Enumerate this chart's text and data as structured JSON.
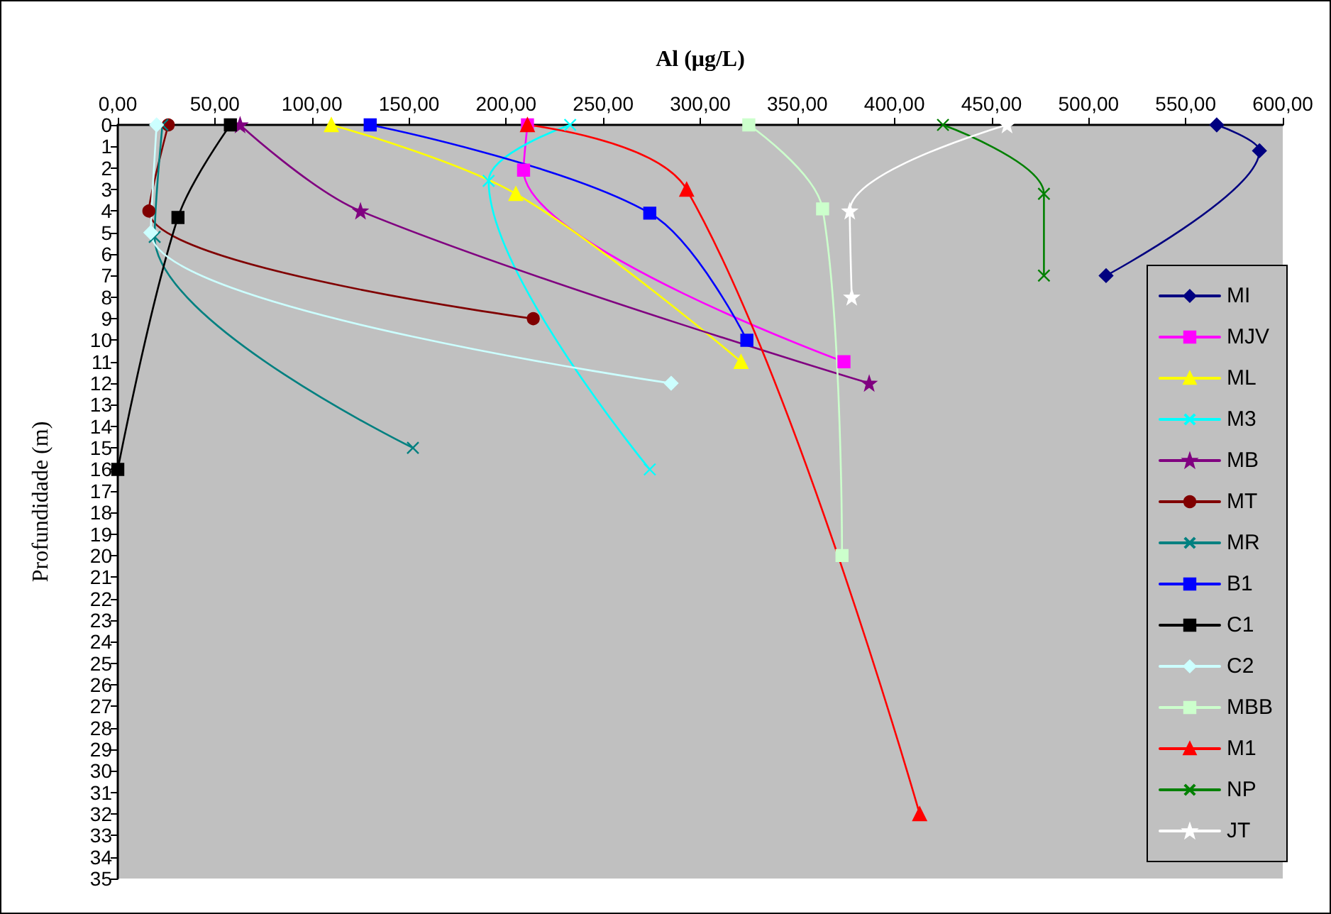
{
  "chart_data": {
    "type": "line",
    "xlabel": "Al (μg/L)",
    "ylabel": "Profundidade (m)",
    "xlim": [
      0,
      600
    ],
    "xticks": [
      {
        "value": 0,
        "label": "0,00"
      },
      {
        "value": 50,
        "label": "50,00"
      },
      {
        "value": 100,
        "label": "100,00"
      },
      {
        "value": 150,
        "label": "150,00"
      },
      {
        "value": 200,
        "label": "200,00"
      },
      {
        "value": 250,
        "label": "250,00"
      },
      {
        "value": 300,
        "label": "300,00"
      },
      {
        "value": 350,
        "label": "350,00"
      },
      {
        "value": 400,
        "label": "400,00"
      },
      {
        "value": 450,
        "label": "450,00"
      },
      {
        "value": 500,
        "label": "500,00"
      },
      {
        "value": 550,
        "label": "550,00"
      },
      {
        "value": 600,
        "label": "600,00"
      }
    ],
    "ylim": [
      35,
      0
    ],
    "yticks": [
      0,
      1,
      2,
      3,
      4,
      5,
      6,
      7,
      8,
      9,
      10,
      11,
      12,
      13,
      14,
      15,
      16,
      17,
      18,
      19,
      20,
      21,
      22,
      23,
      24,
      25,
      26,
      27,
      28,
      29,
      30,
      31,
      32,
      33,
      34,
      35
    ],
    "grid": false,
    "legend": "bottom right",
    "series": [
      {
        "name": "MI",
        "color": "#000080",
        "marker": "diamond",
        "x": [
          566,
          588,
          509
        ],
        "values": [
          0,
          1.2,
          7
        ]
      },
      {
        "name": "MJV",
        "color": "#ff00ff",
        "marker": "square",
        "x": [
          211,
          209,
          374
        ],
        "values": [
          0,
          2.1,
          11
        ]
      },
      {
        "name": "ML",
        "color": "#ffff00",
        "marker": "triangle",
        "x": [
          110,
          205,
          321
        ],
        "values": [
          0,
          3.2,
          11
        ]
      },
      {
        "name": "M3",
        "color": "#00ffff",
        "marker": "cross",
        "x": [
          233,
          191,
          274
        ],
        "values": [
          0,
          2.6,
          16
        ]
      },
      {
        "name": "MB",
        "color": "#800080",
        "marker": "star",
        "x": [
          63,
          125,
          387
        ],
        "values": [
          0,
          4,
          12
        ]
      },
      {
        "name": "MT",
        "color": "#800000",
        "marker": "circle",
        "x": [
          26,
          16,
          214
        ],
        "values": [
          0,
          4,
          9
        ]
      },
      {
        "name": "MR",
        "color": "#008080",
        "marker": "cross",
        "x": [
          23,
          19,
          152
        ],
        "values": [
          0,
          5.2,
          15
        ]
      },
      {
        "name": "B1",
        "color": "#0000ff",
        "marker": "square",
        "x": [
          130,
          274,
          324
        ],
        "values": [
          0,
          4.1,
          10
        ]
      },
      {
        "name": "C1",
        "color": "#000000",
        "marker": "square",
        "x": [
          58,
          31,
          0
        ],
        "values": [
          0,
          4.3,
          16
        ]
      },
      {
        "name": "C2",
        "color": "#ccffff",
        "marker": "diamond",
        "x": [
          20,
          17,
          285
        ],
        "values": [
          0,
          5,
          12
        ]
      },
      {
        "name": "MBB",
        "color": "#ccffcc",
        "marker": "square",
        "x": [
          325,
          363,
          373
        ],
        "values": [
          0,
          3.9,
          20
        ]
      },
      {
        "name": "M1",
        "color": "#ff0000",
        "marker": "triangle",
        "x": [
          211,
          293,
          413
        ],
        "values": [
          0,
          3,
          32
        ]
      },
      {
        "name": "NP",
        "color": "#008000",
        "marker": "cross",
        "x": [
          425,
          477,
          477
        ],
        "values": [
          0,
          3.2,
          7
        ]
      },
      {
        "name": "JT",
        "color": "#ffffff",
        "marker": "star",
        "x": [
          458,
          377,
          378
        ],
        "values": [
          0,
          4,
          8
        ]
      }
    ]
  }
}
